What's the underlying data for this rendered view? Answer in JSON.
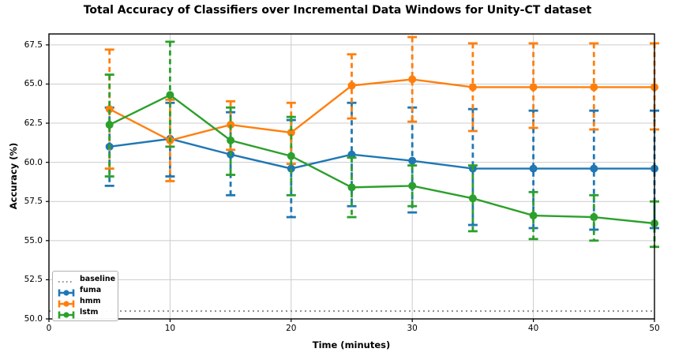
{
  "title": "Total Accuracy of Classifiers over Incremental Data Windows for Unity-CT dataset",
  "axes": {
    "x_label": "Time (minutes)",
    "y_label": "Accuracy (%)",
    "x_tick_labels": [
      "0",
      "10",
      "20",
      "30",
      "40",
      "50"
    ],
    "y_tick_labels": [
      "50.0",
      "52.5",
      "55.0",
      "57.5",
      "60.0",
      "62.5",
      "65.0",
      "67.5"
    ]
  },
  "legend": {
    "position": "lower left",
    "items": [
      {
        "label": "baseline",
        "color": "#8c8c8c",
        "glyph": "dotted-line"
      },
      {
        "label": "fuma",
        "color": "#1f77b4",
        "glyph": "errorbar"
      },
      {
        "label": "hmm",
        "color": "#ff7f0e",
        "glyph": "errorbar"
      },
      {
        "label": "lstm",
        "color": "#2ca02c",
        "glyph": "errorbar"
      }
    ]
  },
  "colors": {
    "fuma": "#1f77b4",
    "hmm": "#ff7f0e",
    "lstm": "#2ca02c",
    "baseline": "#8c8c8c",
    "grid": "#cccccc",
    "spine": "#000000"
  },
  "chart_data": {
    "type": "line",
    "title": "Total Accuracy of Classifiers over Incremental Data Windows for Unity-CT dataset",
    "xlabel": "Time (minutes)",
    "ylabel": "Accuracy (%)",
    "x": [
      5,
      10,
      15,
      20,
      25,
      30,
      35,
      40,
      45,
      50
    ],
    "series": [
      {
        "name": "fuma",
        "color": "#1f77b4",
        "values": [
          61.0,
          61.5,
          60.5,
          59.6,
          60.5,
          60.1,
          59.6,
          59.6,
          59.6,
          59.6
        ],
        "upper": [
          63.5,
          63.8,
          63.2,
          62.7,
          63.8,
          63.5,
          63.4,
          63.3,
          63.3,
          63.3
        ],
        "lower": [
          58.5,
          59.1,
          57.9,
          56.5,
          57.2,
          56.8,
          56.0,
          55.8,
          55.7,
          55.8
        ]
      },
      {
        "name": "hmm",
        "color": "#ff7f0e",
        "values": [
          63.4,
          61.4,
          62.4,
          61.9,
          64.9,
          65.3,
          64.8,
          64.8,
          64.8,
          64.8
        ],
        "upper": [
          67.2,
          64.0,
          63.9,
          63.8,
          66.9,
          68.0,
          67.6,
          67.6,
          67.6,
          67.6
        ],
        "lower": [
          59.6,
          58.8,
          60.8,
          59.9,
          62.8,
          62.6,
          62.0,
          62.2,
          62.1,
          62.1
        ]
      },
      {
        "name": "lstm",
        "color": "#2ca02c",
        "values": [
          62.4,
          64.3,
          61.4,
          60.4,
          58.4,
          58.5,
          57.7,
          56.6,
          56.5,
          56.1
        ],
        "upper": [
          65.6,
          67.7,
          63.5,
          62.9,
          60.3,
          59.8,
          59.8,
          58.1,
          57.9,
          57.5
        ],
        "lower": [
          59.1,
          61.0,
          59.2,
          57.9,
          56.5,
          57.2,
          55.6,
          55.1,
          55.0,
          54.6
        ]
      }
    ],
    "baseline": {
      "name": "baseline",
      "value": 50.5,
      "color": "#8c8c8c"
    },
    "x_ticks": [
      0,
      10,
      20,
      30,
      40,
      50
    ],
    "y_ticks": [
      50,
      52.5,
      55,
      57.5,
      60,
      62.5,
      65,
      67.5
    ],
    "xlim": [
      0,
      50
    ],
    "ylim": [
      50,
      68.2
    ],
    "grid": true,
    "legend_position": "lower left"
  }
}
